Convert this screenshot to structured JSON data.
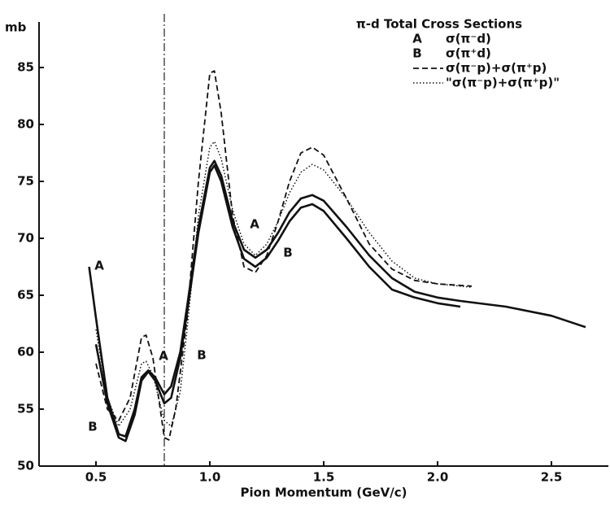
{
  "chart_data": {
    "type": "line",
    "title": "π-d Total Cross Sections",
    "x_label": "Pion Momentum (GeV/c)",
    "y_label": "mb",
    "xlim": [
      0.25,
      2.75
    ],
    "ylim": [
      50,
      89
    ],
    "xticks": [
      0.5,
      {
        "value": 1,
        "label": "1.0"
      },
      1.5,
      {
        "value": 2,
        "label": "2.0"
      },
      2.5
    ],
    "yticks": [
      50,
      55,
      60,
      65,
      70,
      75,
      80,
      85
    ],
    "vlines": [
      0.8
    ],
    "annotations": [
      "A",
      "A",
      "A",
      "B",
      "B",
      "B"
    ],
    "series": [
      {
        "name": "σ(π⁻d)",
        "label": "A",
        "color": "#111111",
        "style": "solid",
        "x": [
          0.47,
          0.5,
          0.55,
          0.6,
          0.63,
          0.67,
          0.7,
          0.73,
          0.76,
          0.8,
          0.83,
          0.87,
          0.9,
          0.95,
          1.0,
          1.02,
          1.05,
          1.1,
          1.15,
          1.2,
          1.25,
          1.3,
          1.35,
          1.4,
          1.45,
          1.5,
          1.6,
          1.7,
          1.8,
          1.9,
          2.0,
          2.1,
          2.3,
          2.5,
          2.65
        ],
        "values": [
          67.5,
          63,
          56,
          52.8,
          52.6,
          55,
          57.8,
          58.4,
          57.8,
          56.3,
          57,
          60,
          64,
          71,
          76.2,
          76.8,
          75.5,
          71.5,
          69,
          68.3,
          69,
          70.5,
          72.3,
          73.5,
          73.8,
          73.3,
          71,
          68.5,
          66.5,
          65.3,
          64.8,
          64.5,
          64,
          63.2,
          62.2
        ]
      },
      {
        "name": "σ(π⁺d)",
        "label": "B",
        "color": "#111111",
        "style": "solid",
        "x": [
          0.5,
          0.55,
          0.6,
          0.63,
          0.67,
          0.7,
          0.73,
          0.76,
          0.8,
          0.83,
          0.87,
          0.9,
          0.95,
          1.0,
          1.02,
          1.05,
          1.1,
          1.15,
          1.2,
          1.25,
          1.3,
          1.35,
          1.4,
          1.45,
          1.5,
          1.6,
          1.7,
          1.8,
          1.9,
          2.0,
          2.1
        ],
        "values": [
          60.7,
          55.5,
          52.5,
          52.2,
          54.5,
          57.5,
          58.3,
          57.5,
          55.5,
          56,
          59.5,
          63.5,
          70.5,
          75.8,
          76.4,
          75,
          71,
          68.2,
          67.5,
          68.3,
          69.8,
          71.5,
          72.7,
          73,
          72.4,
          70,
          67.5,
          65.5,
          64.8,
          64.3,
          64
        ]
      },
      {
        "name": "σ(π⁻p)+σ(π⁺p)",
        "color": "#111111",
        "style": "dashed",
        "x": [
          0.5,
          0.55,
          0.6,
          0.65,
          0.7,
          0.72,
          0.75,
          0.8,
          0.82,
          0.85,
          0.9,
          0.95,
          1.0,
          1.02,
          1.05,
          1.1,
          1.15,
          1.2,
          1.25,
          1.3,
          1.35,
          1.4,
          1.45,
          1.5,
          1.6,
          1.7,
          1.8,
          1.9,
          2.0,
          2.15
        ],
        "values": [
          59,
          55,
          54,
          56,
          61.3,
          61.5,
          59.5,
          52.5,
          52.3,
          55,
          63,
          75,
          84.5,
          84.7,
          81,
          72,
          67.5,
          67,
          68.5,
          71.5,
          75,
          77.5,
          78,
          77.3,
          73.5,
          69.5,
          67.3,
          66.3,
          66,
          65.8
        ]
      },
      {
        "name": "\"σ(π⁻p)+σ(π⁺p)\"",
        "color": "#111111",
        "style": "dotted",
        "x": [
          0.5,
          0.55,
          0.6,
          0.65,
          0.7,
          0.72,
          0.75,
          0.8,
          0.83,
          0.87,
          0.9,
          0.95,
          1.0,
          1.02,
          1.05,
          1.1,
          1.15,
          1.2,
          1.25,
          1.3,
          1.35,
          1.4,
          1.45,
          1.5,
          1.6,
          1.7,
          1.8,
          1.9,
          2.0,
          2.15
        ],
        "values": [
          62,
          56,
          53.5,
          55,
          59,
          59.2,
          58,
          54,
          53.5,
          56.5,
          62,
          72,
          78,
          78.5,
          77,
          72.5,
          69.5,
          68.5,
          69.5,
          71.5,
          74,
          75.8,
          76.5,
          76,
          73.5,
          70.5,
          68,
          66.5,
          66,
          65.7
        ]
      }
    ]
  }
}
